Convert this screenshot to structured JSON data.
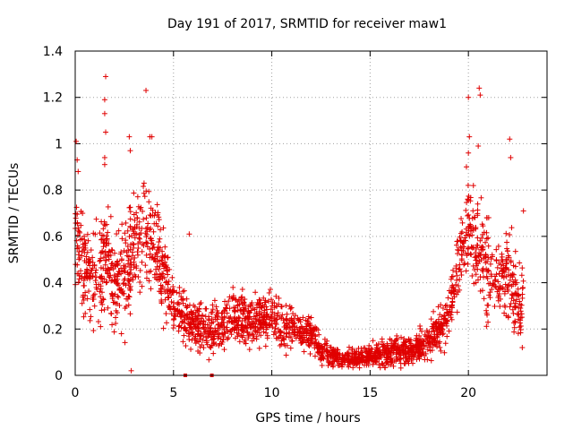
{
  "chart_data": {
    "type": "scatter",
    "title": "Day 191 of 2017, SRMTID for receiver maw1",
    "xlabel": "GPS time / hours",
    "ylabel": "SRMTID / TECUs",
    "xlim": [
      0,
      24
    ],
    "ylim": [
      0,
      1.4
    ],
    "xticks": [
      0,
      5,
      10,
      15,
      20
    ],
    "yticks": [
      0,
      0.2,
      0.4,
      0.6,
      0.8,
      1,
      1.2,
      1.4
    ],
    "xtick_labels": [
      "0",
      "5",
      "10",
      "15",
      "20"
    ],
    "ytick_labels": [
      "0",
      "0.2",
      "0.4",
      "0.6",
      "0.8",
      "1",
      "1.2",
      "1.4"
    ],
    "grid": true,
    "marker": "+",
    "color": "#e00000",
    "trend": [
      {
        "x": 0.0,
        "y": 0.55,
        "s": 0.15
      },
      {
        "x": 0.5,
        "y": 0.5,
        "s": 0.14
      },
      {
        "x": 1.0,
        "y": 0.42,
        "s": 0.13
      },
      {
        "x": 1.5,
        "y": 0.5,
        "s": 0.16
      },
      {
        "x": 2.0,
        "y": 0.4,
        "s": 0.14
      },
      {
        "x": 2.5,
        "y": 0.45,
        "s": 0.16
      },
      {
        "x": 3.0,
        "y": 0.55,
        "s": 0.17
      },
      {
        "x": 3.5,
        "y": 0.6,
        "s": 0.17
      },
      {
        "x": 4.0,
        "y": 0.55,
        "s": 0.16
      },
      {
        "x": 4.5,
        "y": 0.45,
        "s": 0.13
      },
      {
        "x": 5.0,
        "y": 0.3,
        "s": 0.07
      },
      {
        "x": 6.0,
        "y": 0.22,
        "s": 0.07
      },
      {
        "x": 7.0,
        "y": 0.2,
        "s": 0.07
      },
      {
        "x": 8.0,
        "y": 0.25,
        "s": 0.08
      },
      {
        "x": 9.0,
        "y": 0.22,
        "s": 0.07
      },
      {
        "x": 10.0,
        "y": 0.25,
        "s": 0.07
      },
      {
        "x": 11.0,
        "y": 0.2,
        "s": 0.06
      },
      {
        "x": 12.0,
        "y": 0.18,
        "s": 0.05
      },
      {
        "x": 12.5,
        "y": 0.1,
        "s": 0.04
      },
      {
        "x": 13.5,
        "y": 0.07,
        "s": 0.025
      },
      {
        "x": 15.0,
        "y": 0.08,
        "s": 0.03
      },
      {
        "x": 16.0,
        "y": 0.1,
        "s": 0.04
      },
      {
        "x": 17.0,
        "y": 0.1,
        "s": 0.04
      },
      {
        "x": 18.0,
        "y": 0.15,
        "s": 0.05
      },
      {
        "x": 19.0,
        "y": 0.25,
        "s": 0.07
      },
      {
        "x": 19.5,
        "y": 0.5,
        "s": 0.12
      },
      {
        "x": 20.0,
        "y": 0.65,
        "s": 0.15
      },
      {
        "x": 20.5,
        "y": 0.55,
        "s": 0.15
      },
      {
        "x": 21.0,
        "y": 0.45,
        "s": 0.14
      },
      {
        "x": 21.5,
        "y": 0.4,
        "s": 0.12
      },
      {
        "x": 22.0,
        "y": 0.45,
        "s": 0.15
      },
      {
        "x": 22.6,
        "y": 0.3,
        "s": 0.12
      }
    ],
    "outliers": [
      {
        "x": 0.05,
        "y": 1.01
      },
      {
        "x": 0.1,
        "y": 0.93
      },
      {
        "x": 0.15,
        "y": 0.88
      },
      {
        "x": 1.55,
        "y": 1.29
      },
      {
        "x": 1.5,
        "y": 1.19
      },
      {
        "x": 1.5,
        "y": 1.13
      },
      {
        "x": 1.55,
        "y": 1.05
      },
      {
        "x": 1.5,
        "y": 0.94
      },
      {
        "x": 1.5,
        "y": 0.91
      },
      {
        "x": 2.75,
        "y": 1.03
      },
      {
        "x": 2.8,
        "y": 0.97
      },
      {
        "x": 3.6,
        "y": 1.23
      },
      {
        "x": 3.8,
        "y": 1.03
      },
      {
        "x": 3.9,
        "y": 1.03
      },
      {
        "x": 2.85,
        "y": 0.02
      },
      {
        "x": 20.0,
        "y": 1.2
      },
      {
        "x": 20.05,
        "y": 1.03
      },
      {
        "x": 20.55,
        "y": 1.24
      },
      {
        "x": 20.6,
        "y": 1.21
      },
      {
        "x": 20.5,
        "y": 0.99
      },
      {
        "x": 22.1,
        "y": 1.02
      },
      {
        "x": 22.15,
        "y": 0.94
      },
      {
        "x": 22.8,
        "y": 0.71
      },
      {
        "x": 5.8,
        "y": 0.61
      },
      {
        "x": 20.0,
        "y": 0.96
      },
      {
        "x": 19.9,
        "y": 0.9
      }
    ],
    "edge_markers": [
      {
        "x": 5.6,
        "y": 0
      },
      {
        "x": 6.95,
        "y": 0
      }
    ],
    "x_range": [
      0.0,
      22.8
    ],
    "n_points": 2400
  }
}
